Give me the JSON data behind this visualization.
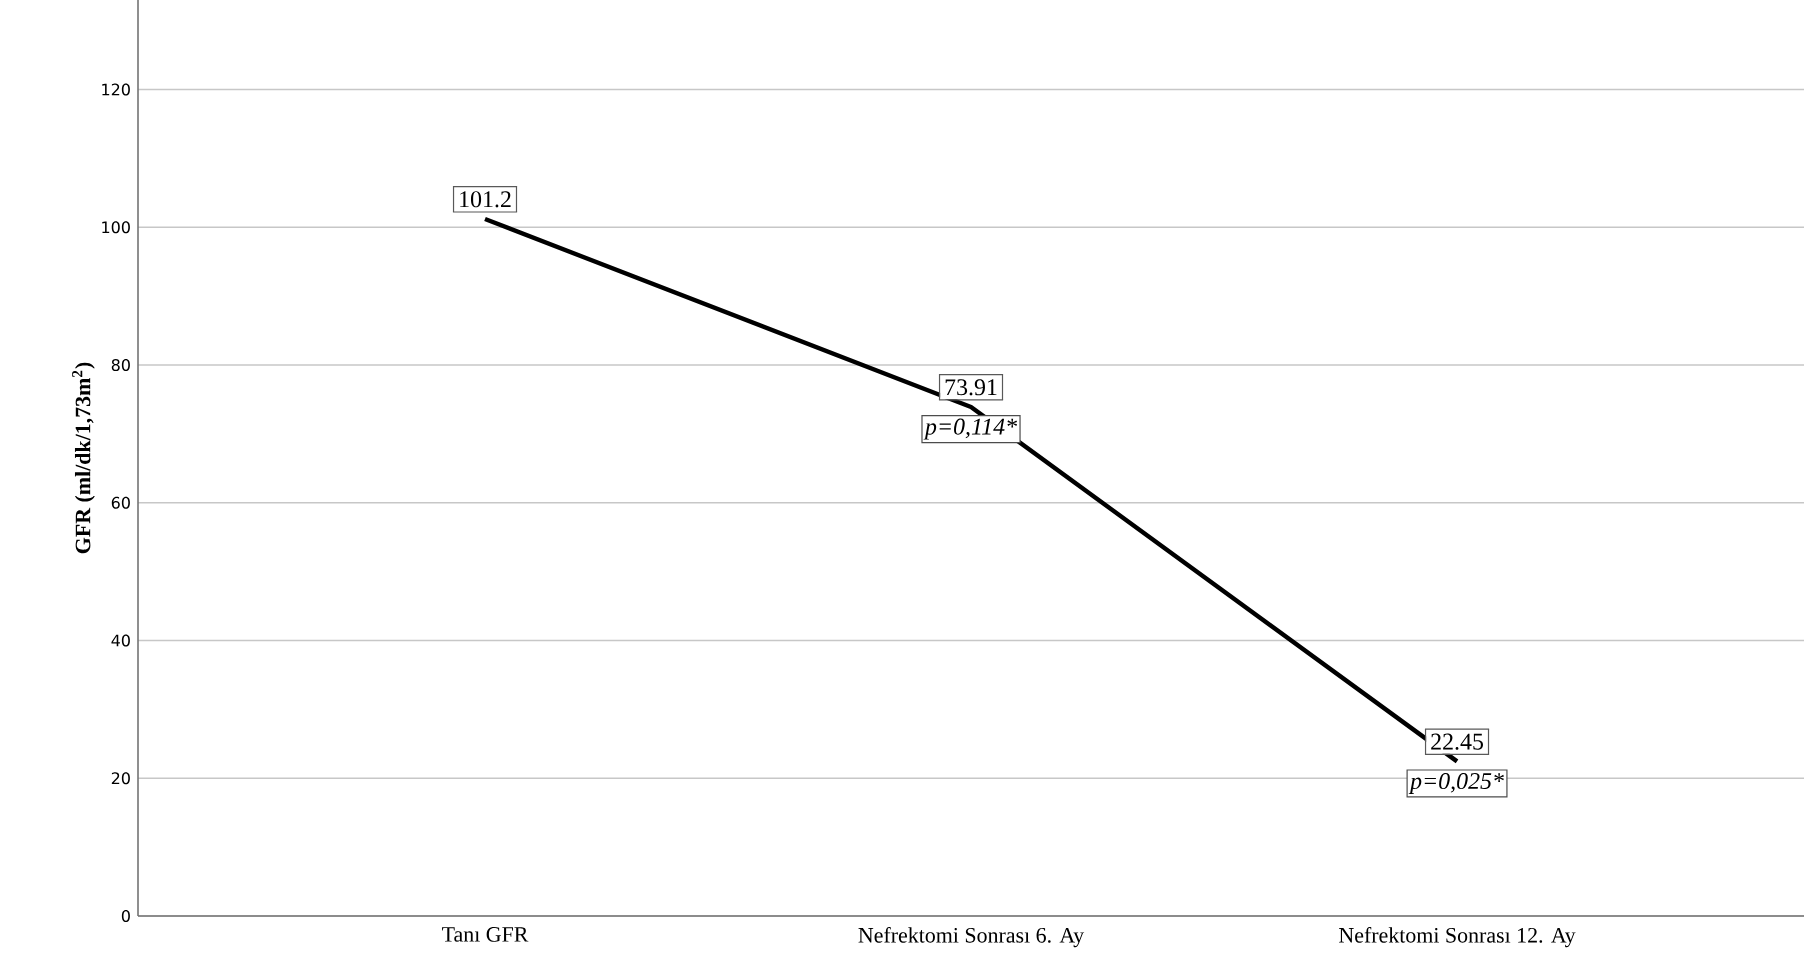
{
  "chart_data": {
    "type": "line",
    "ylabel": "GFR (ml/dk/1,73m$^{2}$)",
    "categories": [
      "Tanı GFR",
      "Nefrektomi Sonrası 6. Ay",
      "Nefrektomi Sonrası 12. Ay"
    ],
    "series": [
      {
        "color": "#000000",
        "values": [
          101.2,
          73.91,
          22.45
        ]
      }
    ],
    "data_labels": true,
    "ylim": [
      0,
      133
    ],
    "yticks": [
      0,
      20,
      40,
      60,
      80,
      100,
      120
    ],
    "grid": "y",
    "line_style": "solid",
    "annotations": [
      "p=0,114*",
      "p=0,025*"
    ]
  }
}
